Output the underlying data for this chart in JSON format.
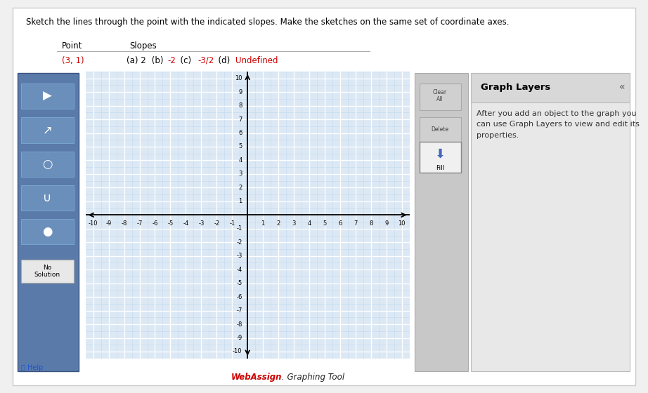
{
  "title_text": "Sketch the lines through the point with the indicated slopes. Make the sketches on the same set of coordinate axes.",
  "point_label": "Point",
  "slopes_label": "Slopes",
  "point_value": "(3, 1)",
  "grid_bg": "#dce9f5",
  "grid_line_color_major": "#ffffff",
  "grid_line_color_minor": "#c0d8ee",
  "outer_bg": "#f0f0f0",
  "white_panel": "#ffffff",
  "sidebar_bg": "#5a7aaa",
  "sidebar_btn_bg": "#6b8fbb",
  "sidebar_border": "#7aaad5",
  "right_panel_bg": "#c8c8c8",
  "gl_panel_bg": "#e8e8e8",
  "gl_header_bg": "#d8d8d8",
  "fill_btn_bg": "#f0f0f0",
  "no_sol_bg": "#e8e8e8",
  "xlim": [
    -10,
    10
  ],
  "ylim": [
    -10,
    10
  ],
  "slope_parts": [
    {
      "text": "(a) 2 ",
      "color": "#000000"
    },
    {
      "text": " (b) ",
      "color": "#000000"
    },
    {
      "text": "-2",
      "color": "#cc0000"
    },
    {
      "text": "  (c) ",
      "color": "#000000"
    },
    {
      "text": "-3/2",
      "color": "#cc0000"
    },
    {
      "text": "  (d) ",
      "color": "#000000"
    },
    {
      "text": "Undefined",
      "color": "#cc0000"
    }
  ],
  "graph_layers_title": "Graph Layers",
  "graph_layers_body": "After you add an object to the graph you\ncan use Graph Layers to view and edit its\nproperties.",
  "no_solution_text": "No\nSolution",
  "fill_text": "Fill",
  "help_text": "Help",
  "webassign_text": "WebAssign",
  "graphing_tool_text": ". Graphing Tool"
}
